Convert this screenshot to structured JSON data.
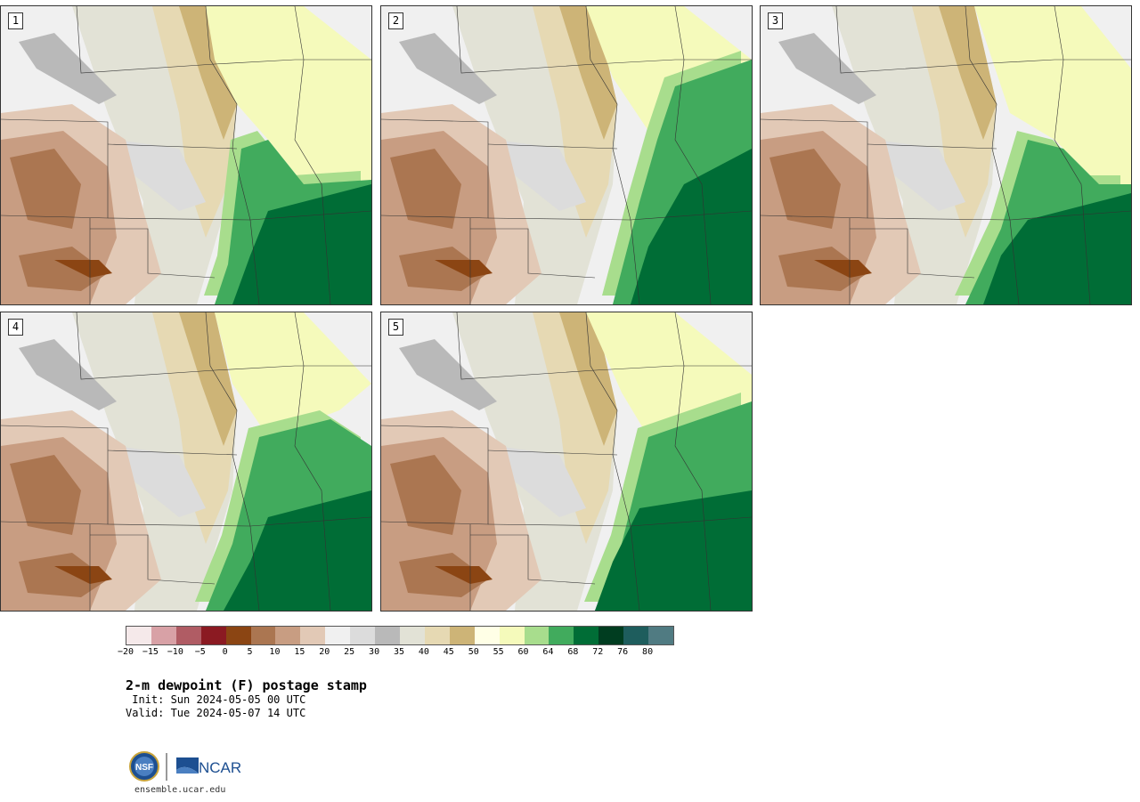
{
  "panels": [
    {
      "label": "1"
    },
    {
      "label": "2"
    },
    {
      "label": "3"
    },
    {
      "label": "4"
    },
    {
      "label": "5"
    }
  ],
  "colorbar": {
    "colors": [
      "#f5e9ea",
      "#d8a1a6",
      "#b05c64",
      "#8b1a22",
      "#8b4513",
      "#ab7651",
      "#c89d82",
      "#e2c9b6",
      "#f0f0f0",
      "#dcdcdc",
      "#b9b9b9",
      "#e2e2d6",
      "#e6d9b3",
      "#cdb477",
      "#ffffe6",
      "#f5fabb",
      "#a8dd8d",
      "#41ab5d",
      "#006d36",
      "#003d20",
      "#1e5d5d",
      "#507b82"
    ],
    "ticks": [
      "−20",
      "−15",
      "−10",
      "−5",
      "0",
      "5",
      "10",
      "15",
      "20",
      "25",
      "30",
      "35",
      "40",
      "45",
      "50",
      "55",
      "60",
      "64",
      "68",
      "72",
      "76",
      "80"
    ]
  },
  "title": "2-m dewpoint (F) postage stamp",
  "init": " Init: Sun 2024-05-05 00 UTC",
  "valid": "Valid: Tue 2024-05-07 14 UTC",
  "logo": {
    "nsf_text": "NSF",
    "ncar_text": "NCAR"
  },
  "website": "ensemble.ucar.edu"
}
